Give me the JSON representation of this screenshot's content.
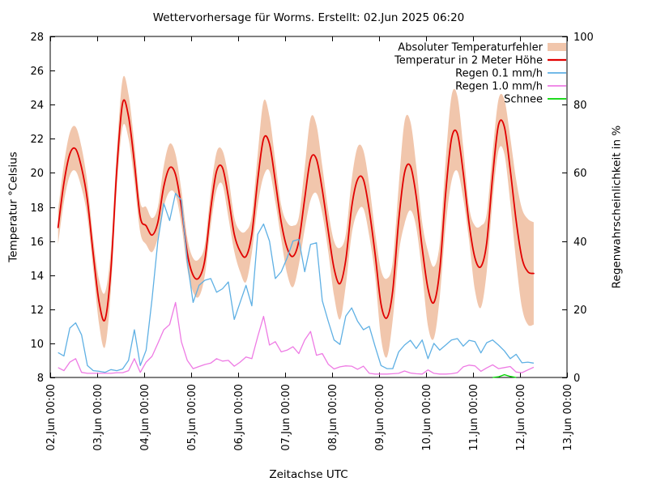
{
  "chart_data": {
    "type": "line",
    "title": "Wettervorhersage für Worms. Erstellt: 02.Jun 2025 06:20",
    "xlabel": "Zeitachse UTC",
    "ylabel_left": "Temperatur °Celsius",
    "ylabel_right": "Regenwahrscheinlichkeit in %",
    "grid": "off",
    "legend_position": "top-right-inside",
    "x_tick_labels": [
      "02.Jun 00:00",
      "03.Jun 00:00",
      "04.Jun 00:00",
      "05.Jun 00:00",
      "06.Jun 00:00",
      "07.Jun 00:00",
      "08.Jun 00:00",
      "09.Jun 00:00",
      "10.Jun 00:00",
      "11.Jun 00:00",
      "12.Jun 00:00",
      "13.Jun 00:00"
    ],
    "x_range_days": [
      0,
      11
    ],
    "y_left": {
      "min": 8,
      "max": 28,
      "step": 2,
      "ticks": [
        8,
        10,
        12,
        14,
        16,
        18,
        20,
        22,
        24,
        26,
        28
      ]
    },
    "y_right": {
      "min": 0,
      "max": 100,
      "step": 20,
      "ticks": [
        0,
        20,
        40,
        60,
        80,
        100
      ]
    },
    "time_grid": {
      "start_days": 0.1667,
      "step_days": 0.125,
      "count": 82,
      "note": "3-hourly samples starting 02.Jun 04:00 UTC"
    },
    "series": [
      {
        "name": "Absoluter Temperaturfehler",
        "type": "band",
        "axis": "left",
        "color": "#f1c6ac",
        "halfwidth": [
          1.0,
          1.1,
          1.25,
          1.3,
          1.2,
          1.0,
          0.9,
          1.3,
          1.6,
          1.2,
          1.1,
          1.4,
          1.3,
          1.1,
          0.9,
          1.1,
          1.0,
          0.9,
          1.2,
          1.4,
          1.2,
          1.0,
          0.9,
          1.0,
          1.1,
          0.9,
          1.0,
          1.1,
          1.0,
          1.2,
          1.0,
          1.2,
          1.5,
          1.1,
          1.5,
          2.2,
          1.6,
          1.2,
          1.0,
          1.5,
          1.8,
          1.4,
          1.8,
          2.4,
          2.0,
          1.4,
          1.2,
          1.6,
          2.1,
          1.5,
          1.6,
          1.9,
          1.7,
          1.5,
          1.3,
          2.0,
          2.3,
          1.7,
          2.0,
          3.0,
          2.6,
          1.8,
          1.5,
          2.2,
          2.1,
          1.6,
          1.9,
          2.5,
          2.2,
          1.5,
          1.0,
          1.9,
          2.4,
          1.7,
          1.4,
          1.5,
          1.6,
          1.9,
          2.4,
          2.9,
          3.1,
          3.0
        ]
      },
      {
        "name": "Temperatur in 2 Meter Höhe",
        "type": "line",
        "axis": "left",
        "color": "#e10000",
        "width": 1.8,
        "values": [
          16.8,
          19.4,
          21.1,
          21.4,
          20.3,
          18.4,
          15.2,
          12.4,
          11.4,
          14.3,
          20.2,
          24.1,
          23.3,
          20.6,
          17.4,
          16.9,
          16.35,
          17.1,
          19.2,
          20.3,
          19.9,
          18.0,
          15.3,
          14.0,
          13.85,
          14.9,
          17.9,
          20.1,
          20.3,
          18.6,
          16.4,
          15.4,
          15.1,
          16.4,
          19.6,
          22.0,
          21.7,
          19.5,
          17.1,
          15.6,
          15.1,
          16.0,
          18.5,
          20.8,
          20.8,
          19.0,
          16.6,
          14.4,
          13.5,
          14.9,
          18.0,
          19.6,
          19.6,
          17.8,
          15.2,
          12.3,
          11.5,
          13.1,
          17.2,
          20.0,
          20.4,
          18.6,
          15.6,
          13.2,
          12.4,
          14.3,
          18.8,
          22.0,
          22.3,
          20.0,
          17.0,
          15.0,
          14.5,
          15.9,
          19.8,
          22.8,
          22.7,
          20.2,
          17.2,
          15.0,
          14.2,
          14.1
        ]
      },
      {
        "name": "Regen 0.1 mm/h",
        "type": "line",
        "axis": "right",
        "color": "#5fb0e4",
        "width": 1.3,
        "values": [
          7.3,
          6.3,
          14.5,
          16.0,
          12.5,
          3.5,
          2.0,
          1.8,
          1.5,
          2.3,
          2.0,
          2.5,
          5.0,
          14.0,
          3.5,
          8.0,
          23.0,
          40.0,
          51.0,
          46.0,
          54.0,
          52.0,
          34.0,
          22.0,
          27.0,
          28.5,
          29.0,
          25.0,
          26.0,
          28.0,
          17.0,
          22.0,
          27.0,
          21.0,
          42.0,
          45.0,
          40.0,
          29.0,
          31.0,
          35.0,
          40.0,
          40.5,
          31.0,
          39.0,
          39.5,
          22.5,
          16.5,
          11.0,
          9.7,
          18.0,
          20.4,
          16.5,
          14.0,
          15.0,
          9.0,
          3.5,
          2.6,
          2.6,
          7.5,
          9.5,
          10.9,
          8.5,
          11.0,
          5.5,
          10.0,
          8.0,
          9.5,
          11.0,
          11.4,
          9.2,
          10.9,
          10.5,
          7.2,
          10.2,
          11.0,
          9.5,
          7.8,
          5.5,
          6.8,
          4.3,
          4.5,
          4.2
        ]
      },
      {
        "name": "Regen 1.0 mm/h",
        "type": "line",
        "axis": "right",
        "color": "#ee7be4",
        "width": 1.3,
        "values": [
          2.9,
          2.0,
          4.5,
          5.5,
          1.5,
          1.2,
          1.2,
          1.2,
          1.2,
          1.2,
          1.4,
          1.4,
          2.0,
          5.5,
          1.5,
          4.5,
          6.2,
          10.0,
          14.0,
          15.5,
          22.0,
          10.5,
          5.0,
          2.6,
          3.2,
          3.8,
          4.2,
          5.5,
          4.8,
          5.0,
          3.3,
          4.5,
          6.0,
          5.5,
          12.0,
          17.9,
          9.5,
          10.5,
          7.5,
          8.0,
          9.0,
          7.0,
          11.0,
          13.5,
          6.5,
          7.0,
          3.9,
          2.5,
          3.1,
          3.4,
          3.3,
          2.4,
          3.3,
          1.2,
          1.0,
          1.0,
          1.0,
          1.1,
          1.2,
          1.9,
          1.3,
          1.1,
          1.0,
          2.2,
          1.2,
          1.0,
          1.0,
          1.1,
          1.4,
          3.1,
          3.6,
          3.4,
          1.8,
          2.8,
          3.7,
          2.6,
          2.9,
          3.2,
          1.6,
          1.4,
          2.2,
          3.0
        ]
      },
      {
        "name": "Schnee",
        "type": "line",
        "axis": "right",
        "color": "#00d400",
        "width": 1.3,
        "values": [
          0,
          0,
          0,
          0,
          0,
          0,
          0,
          0,
          0,
          0,
          0,
          0,
          0,
          0,
          0,
          0,
          0,
          0,
          0,
          0,
          0,
          0,
          0,
          0,
          0,
          0,
          0,
          0,
          0,
          0,
          0,
          0,
          0,
          0,
          0,
          0,
          0,
          0,
          0,
          0,
          0,
          0,
          0,
          0,
          0,
          0,
          0,
          0,
          0,
          0,
          0,
          0,
          0,
          0,
          0,
          0,
          0,
          0,
          0,
          0,
          0,
          0,
          0,
          0,
          0,
          0,
          0,
          0,
          0,
          0,
          0,
          0,
          0,
          0,
          0,
          0.2,
          0.8,
          0.3,
          0,
          0,
          0,
          0
        ]
      }
    ]
  }
}
